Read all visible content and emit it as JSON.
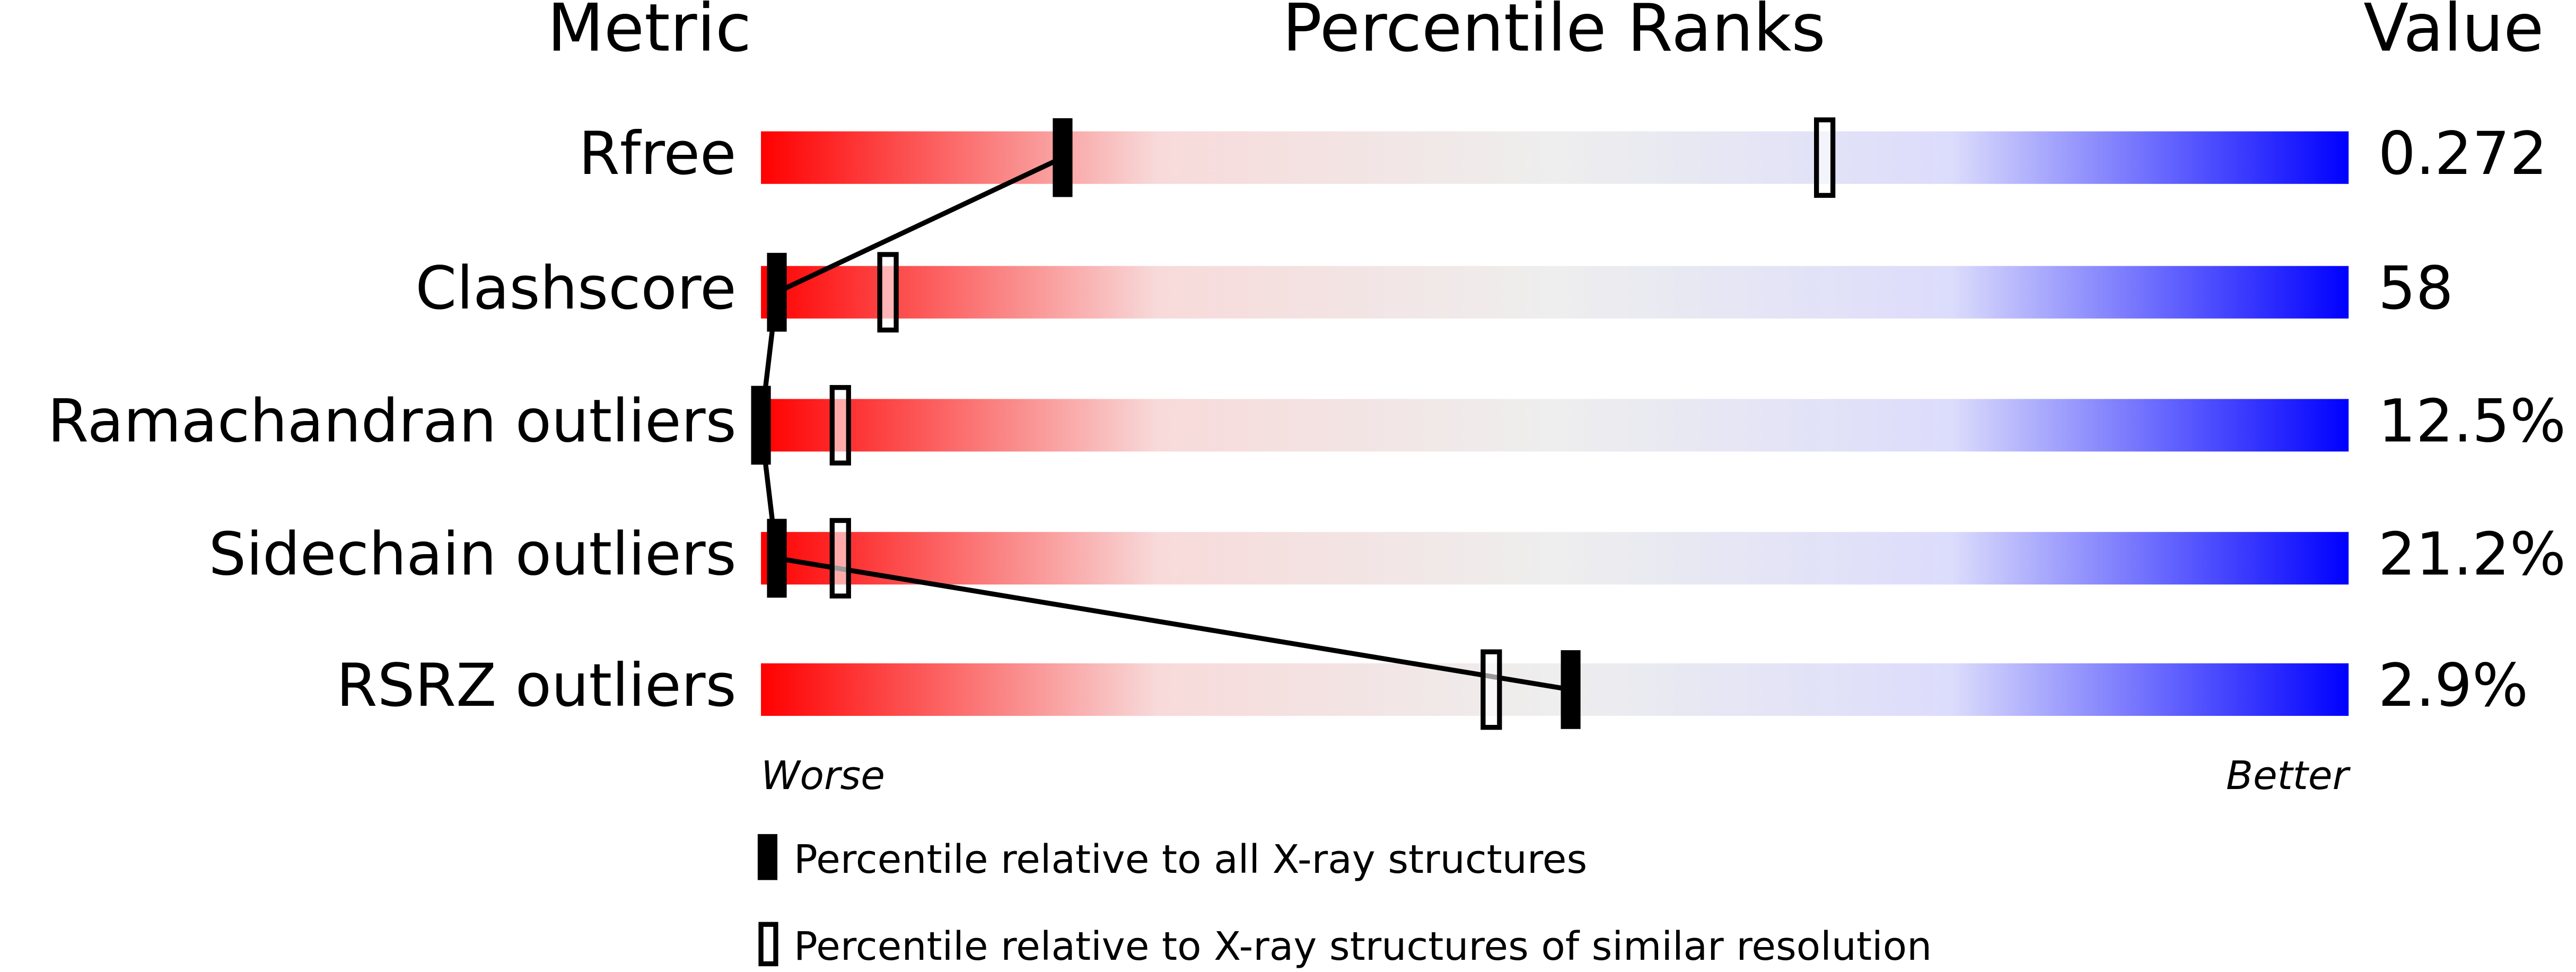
{
  "chart_data": {
    "type": "percentile",
    "headers": [
      "Metric",
      "Percentile Ranks",
      "Value"
    ],
    "categories": [
      "Rfree",
      "Clashscore",
      "Ramachandran outliers",
      "Sidechain outliers",
      "RSRZ outliers"
    ],
    "value_texts": [
      "0.272",
      "58",
      "12.5%",
      "21.2%",
      "2.9%"
    ],
    "xlim": [
      0,
      100
    ],
    "x_end_labels": [
      "Worse",
      "Better"
    ],
    "gradient_colors": [
      "#ff0000",
      "#f8dada",
      "#eeeeee",
      "#dcdcfc",
      "#0000ff"
    ],
    "series": [
      {
        "name": "Percentile relative to all X-ray structures",
        "color": "#000000",
        "style": "filled",
        "values": [
          19,
          1,
          0,
          1,
          51
        ]
      },
      {
        "name": "Percentile relative to X-ray structures of similar resolution",
        "color": "#000000",
        "style": "open",
        "values": [
          67,
          8,
          5,
          5,
          46
        ]
      }
    ]
  }
}
